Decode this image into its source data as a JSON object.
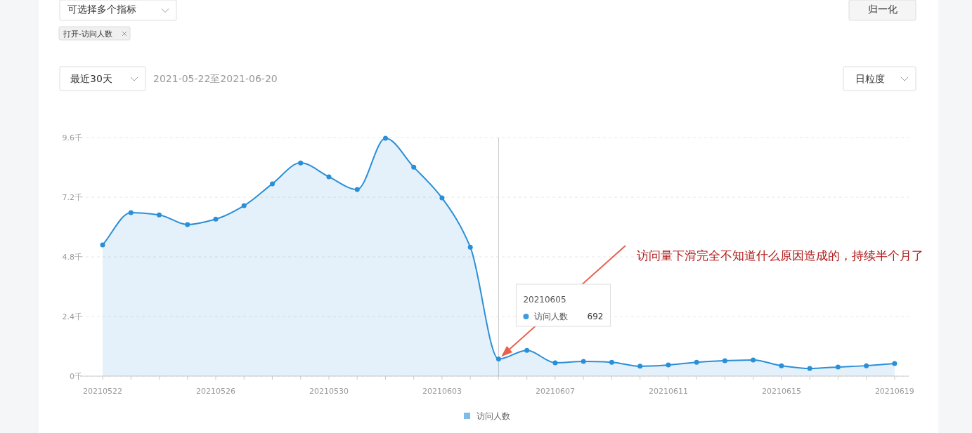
{
  "chart_data": {
    "type": "area",
    "x": [
      "2021-05-22",
      "2021-05-23",
      "2021-05-24",
      "2021-05-25",
      "2021-05-26",
      "2021-05-27",
      "2021-05-28",
      "2021-05-29",
      "2021-05-30",
      "2021-05-31",
      "2021-06-01",
      "2021-06-02",
      "2021-06-03",
      "2021-06-04",
      "2021-06-05",
      "2021-06-06",
      "2021-06-07",
      "2021-06-08",
      "2021-06-09",
      "2021-06-10",
      "2021-06-11",
      "2021-06-12",
      "2021-06-13",
      "2021-06-14",
      "2021-06-15",
      "2021-06-16",
      "2021-06-17",
      "2021-06-18",
      "2021-06-19"
    ],
    "xlim": [
      "2021-05-21T04:55",
      "2021-06-19T12:00"
    ],
    "xticks": [
      {
        "value": "2021-05-22",
        "label": "20210522"
      },
      {
        "value": "2021-05-26",
        "label": "20210526"
      },
      {
        "value": "2021-05-30",
        "label": "20210530"
      },
      {
        "value": "2021-06-03",
        "label": "20210603"
      },
      {
        "value": "2021-06-07",
        "label": "20210607"
      },
      {
        "value": "2021-06-11",
        "label": "20210611"
      },
      {
        "value": "2021-06-15",
        "label": "20210615"
      },
      {
        "value": "2021-06-19",
        "label": "20210619"
      }
    ],
    "series": [
      {
        "name": "访问人数",
        "color": "#2b8fd8",
        "values": [
          5.28,
          6.58,
          6.49,
          6.1,
          6.32,
          6.86,
          7.74,
          8.58,
          8.02,
          7.51,
          9.57,
          8.41,
          7.17,
          5.19,
          0.69,
          1.04,
          0.54,
          0.59,
          0.56,
          0.4,
          0.45,
          0.56,
          0.62,
          0.65,
          0.42,
          0.31,
          0.37,
          0.42,
          0.51
        ]
      }
    ],
    "ylim": [
      0,
      9.6
    ],
    "yticks": [
      {
        "value": 0,
        "label": "0千"
      },
      {
        "value": 2.4,
        "label": "2.4千"
      },
      {
        "value": 4.8,
        "label": "4.8千"
      },
      {
        "value": 7.2,
        "label": "7.2千"
      },
      {
        "value": 9.6,
        "label": "9.6千"
      }
    ],
    "grid": "y",
    "legend": "bottom",
    "marker": "circle",
    "ref_lines": [
      {
        "axis": "x",
        "value": "2021-06-05",
        "color": "#c8c8c8"
      }
    ],
    "annotations": [
      "可选择多个指标",
      "归一化",
      "打开-访问人数",
      "最近30天",
      "2021-05-22至2021-06-20",
      "日粒度",
      "访问量下滑完全不知道什么原因造成的，持续半个月了",
      "20210605",
      "访问人数",
      "692"
    ]
  }
}
